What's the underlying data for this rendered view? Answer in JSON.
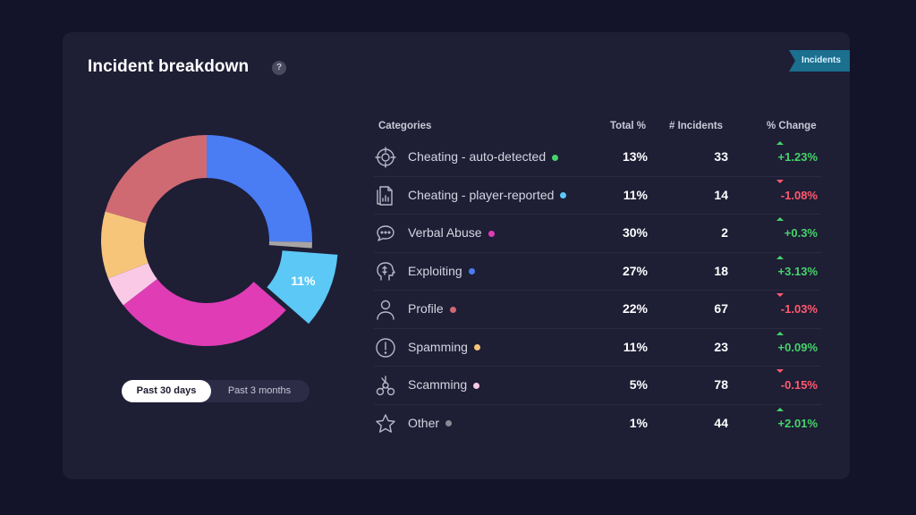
{
  "card": {
    "title": "Incident breakdown",
    "help_icon": "?",
    "ribbon_label": "Incidents"
  },
  "donut": {
    "highlight_label": "11%",
    "segments": [
      {
        "category": "Exploiting",
        "percent": 27,
        "color": "#4a7cf4"
      },
      {
        "category": "Other",
        "percent": 1,
        "color": "#a8a4a4"
      },
      {
        "category": "Cheating - player-reported",
        "percent": 11,
        "color": "#5cc8f6",
        "exploded": true
      },
      {
        "category": "Verbal Abuse",
        "percent": 30,
        "color": "#e03cb6"
      },
      {
        "category": "Scamming",
        "percent": 5,
        "color": "#f9c9e6"
      },
      {
        "category": "Spamming",
        "percent": 11,
        "color": "#f6c57a"
      },
      {
        "category": "Profile",
        "percent": 22,
        "color": "#cf6a72"
      }
    ]
  },
  "toggle": {
    "active": "Past 30 days",
    "inactive": "Past 3 months"
  },
  "table": {
    "headers": {
      "category": "Categories",
      "total": "Total %",
      "incidents": "# Incidents",
      "change": "% Change"
    },
    "rows": [
      {
        "icon": "crosshair-icon",
        "category": "Cheating - auto-detected",
        "dot_color": "#46d36a",
        "total": "13%",
        "incidents": "33",
        "change": "+1.23%",
        "direction": "up"
      },
      {
        "icon": "report-document-icon",
        "category": "Cheating - player-reported",
        "dot_color": "#5cc8f6",
        "total": "11%",
        "incidents": "14",
        "change": "-1.08%",
        "direction": "down"
      },
      {
        "icon": "chat-bubble-icon",
        "category": "Verbal Abuse",
        "dot_color": "#e03cb6",
        "total": "30%",
        "incidents": "2",
        "change": "+0.3%",
        "direction": "up"
      },
      {
        "icon": "brain-head-icon",
        "category": "Exploiting",
        "dot_color": "#4a7cf4",
        "total": "27%",
        "incidents": "18",
        "change": "+3.13%",
        "direction": "up"
      },
      {
        "icon": "user-icon",
        "category": "Profile",
        "dot_color": "#cf6a72",
        "total": "22%",
        "incidents": "67",
        "change": "-1.03%",
        "direction": "down"
      },
      {
        "icon": "alert-circle-icon",
        "category": "Spamming",
        "dot_color": "#f6c57a",
        "total": "11%",
        "incidents": "23",
        "change": "+0.09%",
        "direction": "up"
      },
      {
        "icon": "scam-network-icon",
        "category": "Scamming",
        "dot_color": "#f9c9e6",
        "total": "5%",
        "incidents": "78",
        "change": "-0.15%",
        "direction": "down"
      },
      {
        "icon": "star-icon",
        "category": "Other",
        "dot_color": "#8a8a96",
        "total": "1%",
        "incidents": "44",
        "change": "+2.01%",
        "direction": "up"
      }
    ]
  }
}
